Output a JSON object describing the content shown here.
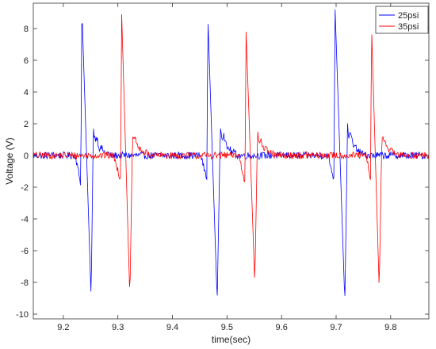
{
  "chart_data": {
    "type": "line",
    "title": "",
    "xlabel": "time(sec)",
    "ylabel": "Voltage (V)",
    "xlim": [
      9.145,
      9.87
    ],
    "ylim": [
      -10.3,
      9.6
    ],
    "xticks": [
      9.2,
      9.3,
      9.4,
      9.5,
      9.6,
      9.7,
      9.8
    ],
    "yticks": [
      -10,
      -8,
      -6,
      -4,
      -2,
      0,
      2,
      4,
      6,
      8
    ],
    "grid": false,
    "legend_position": "top-right",
    "series": [
      {
        "name": "25psi",
        "color": "#0000ff",
        "events": [
          {
            "drop_start": 9.222,
            "pre_dip": -1.8,
            "peak_x": 9.234,
            "peak_y": 9.4,
            "trough_x": 9.251,
            "trough_y": -9.0,
            "rebound_x": 9.255,
            "rebound_y": 1.8
          },
          {
            "drop_start": 9.452,
            "pre_dip": -1.5,
            "peak_x": 9.465,
            "peak_y": 8.7,
            "trough_x": 9.482,
            "trough_y": -9.2,
            "rebound_x": 9.488,
            "rebound_y": 2.0
          },
          {
            "drop_start": 9.685,
            "pre_dip": -1.5,
            "peak_x": 9.698,
            "peak_y": 9.4,
            "trough_x": 9.716,
            "trough_y": -9.3,
            "rebound_x": 9.721,
            "rebound_y": 2.0
          }
        ]
      },
      {
        "name": "35psi",
        "color": "#ff0000",
        "events": [
          {
            "drop_start": 9.292,
            "pre_dip": -1.5,
            "peak_x": 9.307,
            "peak_y": 8.9,
            "trough_x": 9.322,
            "trough_y": -9.0,
            "rebound_x": 9.327,
            "rebound_y": 1.5
          },
          {
            "drop_start": 9.522,
            "pre_dip": -1.8,
            "peak_x": 9.535,
            "peak_y": 7.8,
            "trough_x": 9.551,
            "trough_y": -8.1,
            "rebound_x": 9.556,
            "rebound_y": 1.5
          },
          {
            "drop_start": 9.755,
            "pre_dip": -1.5,
            "peak_x": 9.765,
            "peak_y": 8.1,
            "trough_x": 9.779,
            "trough_y": -8.5,
            "rebound_x": 9.784,
            "rebound_y": 1.5
          }
        ]
      }
    ]
  }
}
